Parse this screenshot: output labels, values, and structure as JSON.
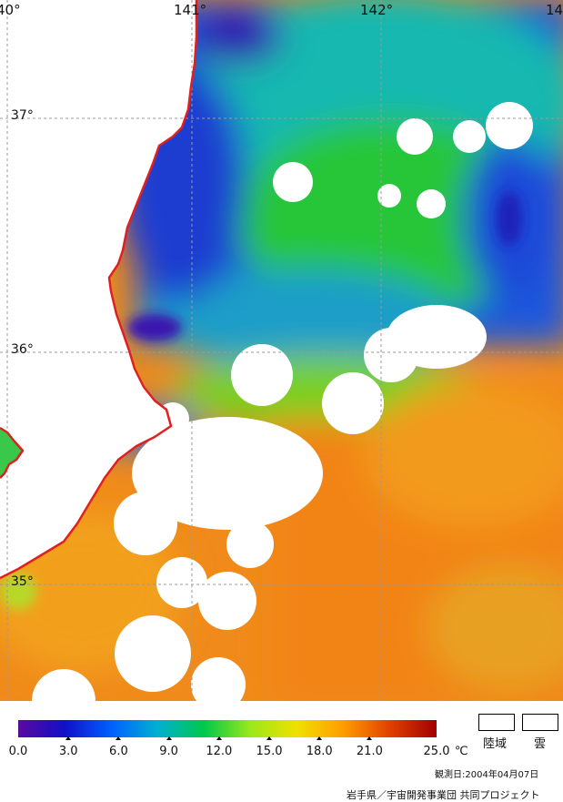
{
  "map": {
    "lon_labels": [
      "40°",
      "141°",
      "142°",
      "14"
    ],
    "lat_labels": [
      "37°",
      "36°",
      "35°"
    ],
    "colors": {
      "land": "#ffffff",
      "cloud": "#ffffff",
      "coastline": "#e02020",
      "grid": "#9a9a9a",
      "cold_water": "#1f4fd8",
      "mid_water": "#22c233",
      "warm_water": "#f07a14"
    }
  },
  "legend": {
    "colorbar": {
      "min": 0.0,
      "max": 25.0,
      "stops": [
        "#5a0aa0",
        "#1010c8",
        "#0060ff",
        "#00b0d0",
        "#00c84a",
        "#9ce81a",
        "#f0e000",
        "#ff9c00",
        "#e04000",
        "#a00000"
      ],
      "ticks": [
        {
          "value": 0.0,
          "label": "0.0"
        },
        {
          "value": 3.0,
          "label": "3.0"
        },
        {
          "value": 6.0,
          "label": "6.0"
        },
        {
          "value": 9.0,
          "label": "9.0"
        },
        {
          "value": 12.0,
          "label": "12.0"
        },
        {
          "value": 15.0,
          "label": "15.0"
        },
        {
          "value": 18.0,
          "label": "18.0"
        },
        {
          "value": 21.0,
          "label": "21.0"
        },
        {
          "value": 25.0,
          "label": "25.0"
        }
      ],
      "unit": "℃"
    },
    "land_label": "陸域",
    "cloud_label": "雲",
    "observation_date": "観測日:2004年04月07日",
    "credit": "岩手県／宇宙開発事業団 共同プロジェクト"
  }
}
